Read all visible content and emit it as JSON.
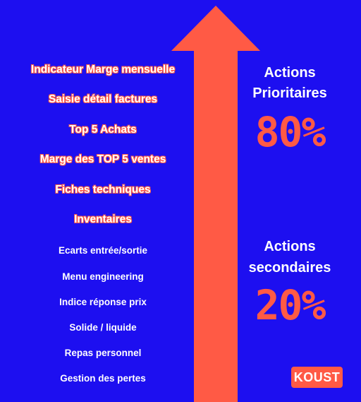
{
  "priority_items": [
    "Indicateur Marge mensuelle",
    "Saisie détail factures",
    "Top 5 Achats",
    "Marge des TOP 5 ventes",
    "Fiches techniques",
    "Inventaires"
  ],
  "secondary_items": [
    "Ecarts entrée/sortie",
    "Menu engineering",
    "Indice réponse prix",
    "Solide / liquide",
    "Repas personnel",
    "Gestion des pertes"
  ],
  "priority_block": {
    "title_line1": "Actions",
    "title_line2": "Prioritaires",
    "percent": "80%"
  },
  "secondary_block": {
    "title_line1": "Actions",
    "title_line2": "secondaires",
    "percent": "20%"
  },
  "logo_text": "KOUST",
  "colors": {
    "background": "#1d0ff0",
    "accent": "#ff5a45",
    "text": "#ffffff"
  }
}
